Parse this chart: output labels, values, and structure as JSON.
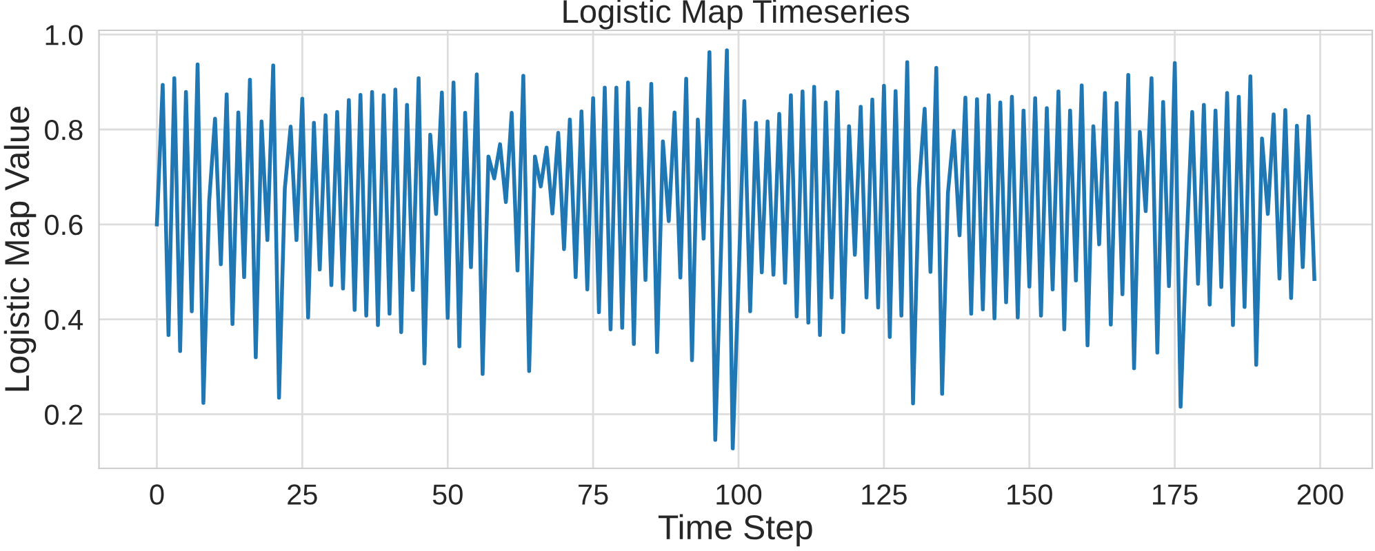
{
  "chart_data": {
    "type": "line",
    "title": "Logistic Map Timeseries",
    "xlabel": "Time Step",
    "ylabel": "Logistic Map Value",
    "x": [
      0,
      1,
      2,
      3,
      4,
      5,
      6,
      7,
      8,
      9,
      10,
      11,
      12,
      13,
      14,
      15,
      16,
      17,
      18,
      19,
      20,
      21,
      22,
      23,
      24,
      25,
      26,
      27,
      28,
      29,
      30,
      31,
      32,
      33,
      34,
      35,
      36,
      37,
      38,
      39,
      40,
      41,
      42,
      43,
      44,
      45,
      46,
      47,
      48,
      49,
      50,
      51,
      52,
      53,
      54,
      55,
      56,
      57,
      58,
      59,
      60,
      61,
      62,
      63,
      64,
      65,
      66,
      67,
      68,
      69,
      70,
      71,
      72,
      73,
      74,
      75,
      76,
      77,
      78,
      79,
      80,
      81,
      82,
      83,
      84,
      85,
      86,
      87,
      88,
      89,
      90,
      91,
      92,
      93,
      94,
      95,
      96,
      97,
      98,
      99,
      100,
      101,
      102,
      103,
      104,
      105,
      106,
      107,
      108,
      109,
      110,
      111,
      112,
      113,
      114,
      115,
      116,
      117,
      118,
      119,
      120,
      121,
      122,
      123,
      124,
      125,
      126,
      127,
      128,
      129,
      130,
      131,
      132,
      133,
      134,
      135,
      136,
      137,
      138,
      139,
      140,
      141,
      142,
      143,
      144,
      145,
      146,
      147,
      148,
      149,
      150,
      151,
      152,
      153,
      154,
      155,
      156,
      157,
      158,
      159,
      160,
      161,
      162,
      163,
      164,
      165,
      166,
      167,
      168,
      169,
      170,
      171,
      172,
      173,
      174,
      175,
      176,
      177,
      178,
      179,
      180,
      181,
      182,
      183,
      184,
      185,
      186,
      187,
      188,
      189,
      190,
      191,
      192,
      193,
      194,
      195,
      196,
      197,
      198,
      199
    ],
    "series": [
      {
        "color": "#1f77b4",
        "values": [
          0.6,
          0.894,
          0.367,
          0.908,
          0.333,
          0.879,
          0.417,
          0.937,
          0.224,
          0.65,
          0.823,
          0.516,
          0.874,
          0.39,
          0.836,
          0.489,
          0.905,
          0.32,
          0.817,
          0.567,
          0.935,
          0.235,
          0.676,
          0.806,
          0.567,
          0.865,
          0.404,
          0.814,
          0.505,
          0.83,
          0.472,
          0.837,
          0.465,
          0.862,
          0.42,
          0.873,
          0.408,
          0.879,
          0.388,
          0.872,
          0.412,
          0.884,
          0.373,
          0.852,
          0.462,
          0.908,
          0.307,
          0.789,
          0.622,
          0.878,
          0.403,
          0.899,
          0.343,
          0.835,
          0.51,
          0.916,
          0.285,
          0.743,
          0.697,
          0.769,
          0.647,
          0.835,
          0.503,
          0.913,
          0.291,
          0.743,
          0.68,
          0.762,
          0.623,
          0.793,
          0.548,
          0.821,
          0.489,
          0.838,
          0.463,
          0.866,
          0.415,
          0.888,
          0.379,
          0.888,
          0.382,
          0.899,
          0.348,
          0.844,
          0.483,
          0.896,
          0.331,
          0.775,
          0.607,
          0.836,
          0.488,
          0.907,
          0.314,
          0.821,
          0.57,
          0.963,
          0.146,
          0.55,
          0.967,
          0.128,
          0.48,
          0.86,
          0.417,
          0.814,
          0.499,
          0.817,
          0.494,
          0.833,
          0.477,
          0.872,
          0.406,
          0.88,
          0.393,
          0.89,
          0.367,
          0.857,
          0.446,
          0.879,
          0.373,
          0.807,
          0.536,
          0.848,
          0.446,
          0.863,
          0.425,
          0.892,
          0.363,
          0.881,
          0.408,
          0.942,
          0.223,
          0.676,
          0.844,
          0.5,
          0.93,
          0.243,
          0.666,
          0.797,
          0.577,
          0.867,
          0.412,
          0.864,
          0.421,
          0.872,
          0.402,
          0.857,
          0.436,
          0.869,
          0.404,
          0.84,
          0.469,
          0.866,
          0.408,
          0.845,
          0.463,
          0.88,
          0.379,
          0.84,
          0.482,
          0.893,
          0.345,
          0.807,
          0.558,
          0.877,
          0.389,
          0.856,
          0.453,
          0.915,
          0.297,
          0.795,
          0.628,
          0.908,
          0.33,
          0.858,
          0.47,
          0.94,
          0.216,
          0.55,
          0.837,
          0.475,
          0.852,
          0.431,
          0.84,
          0.468,
          0.877,
          0.388,
          0.869,
          0.426,
          0.912,
          0.304,
          0.781,
          0.622,
          0.832,
          0.486,
          0.841,
          0.445,
          0.808,
          0.51,
          0.828,
          0.485
        ]
      }
    ],
    "xlim": [
      -9.95,
      208.95
    ],
    "xticks": [
      0,
      25,
      50,
      75,
      100,
      125,
      150,
      175,
      200
    ],
    "ylim": [
      0.086,
      1.009
    ],
    "yticks": [
      0.2,
      0.4,
      0.6,
      0.8,
      {
        "value": 1.0,
        "label": "1.0"
      }
    ],
    "grid": true,
    "legend": false,
    "line_style": "solid"
  }
}
